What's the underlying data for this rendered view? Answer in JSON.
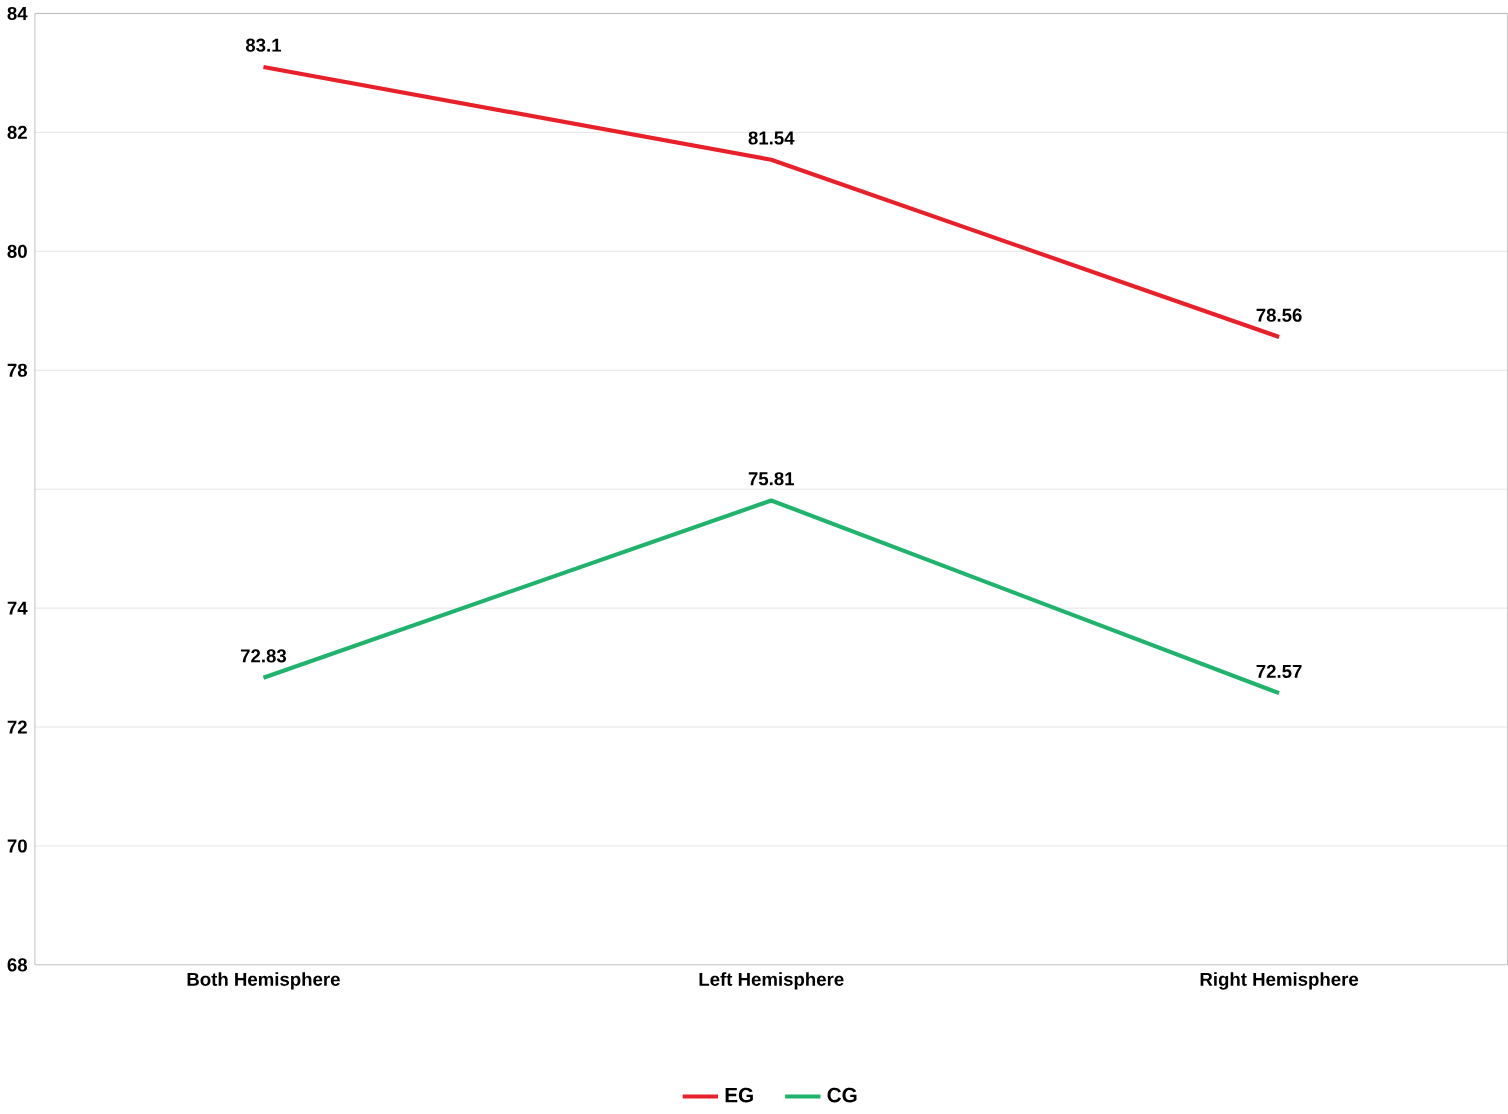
{
  "chart_data": {
    "type": "line",
    "categories": [
      "Both Hemisphere",
      "Left Hemisphere",
      "Right Hemisphere"
    ],
    "series": [
      {
        "name": "EG",
        "color": "#e8202a",
        "values": [
          83.1,
          81.54,
          78.56
        ]
      },
      {
        "name": "CG",
        "color": "#1fb36b",
        "values": [
          72.83,
          75.81,
          72.57
        ]
      }
    ],
    "ylim": [
      68,
      84
    ],
    "yticks": [
      68,
      70,
      72,
      74,
      {
        "value": 76,
        "label": null
      },
      78,
      80,
      82,
      84
    ],
    "grid": "y",
    "legend": "bottom",
    "data_labels": true,
    "marker": "none",
    "line_style": "solid"
  }
}
